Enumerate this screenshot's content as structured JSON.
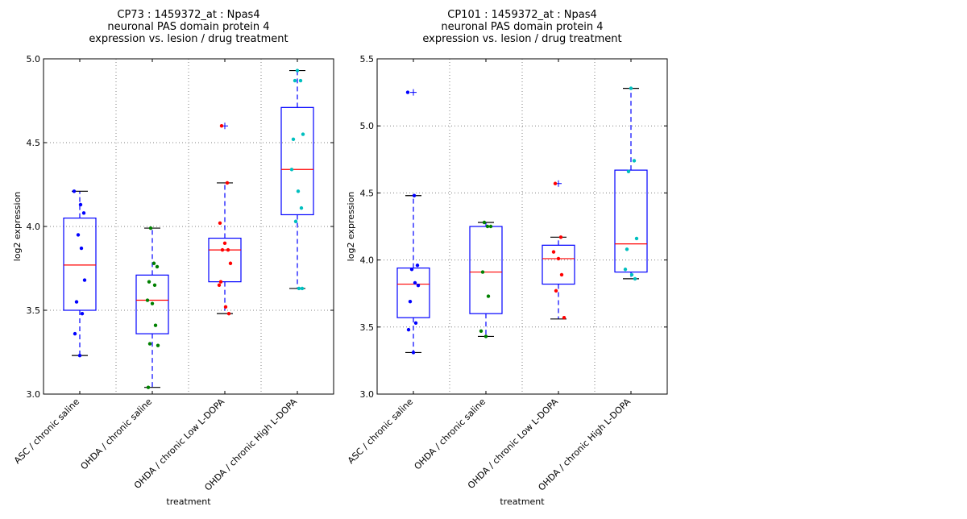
{
  "chart_data": [
    {
      "type": "box",
      "title": [
        "CP73 : 1459372_at : Npas4",
        "neuronal PAS domain protein 4",
        "expression vs. lesion / drug treatment"
      ],
      "xlabel": "treatment",
      "ylabel": "log2 expression",
      "ylim": [
        3.0,
        5.0
      ],
      "yticks": [
        "3.0",
        "3.5",
        "4.0",
        "4.5",
        "5.0"
      ],
      "ytick_values": [
        3.0,
        3.5,
        4.0,
        4.5,
        5.0
      ],
      "grid": true,
      "categories": [
        "ASC / chronic saline",
        "OHDA / chronic saline",
        "OHDA / chronic Low L-DOPA",
        "OHDA / chronic High L-DOPA"
      ],
      "colors": [
        "#0000ff",
        "#008000",
        "#ff0000",
        "#00bfbf"
      ],
      "boxes": [
        {
          "whisker_low": 3.23,
          "q1": 3.5,
          "median": 3.77,
          "q3": 4.05,
          "whisker_high": 4.21,
          "outliers": [],
          "points": [
            4.21,
            4.13,
            4.08,
            3.95,
            3.87,
            3.68,
            3.55,
            3.48,
            3.36,
            3.23
          ]
        },
        {
          "whisker_low": 3.04,
          "q1": 3.36,
          "median": 3.56,
          "q3": 3.71,
          "whisker_high": 3.99,
          "outliers": [],
          "points": [
            3.99,
            3.78,
            3.76,
            3.67,
            3.65,
            3.56,
            3.54,
            3.41,
            3.3,
            3.29,
            3.04
          ]
        },
        {
          "whisker_low": 3.48,
          "q1": 3.67,
          "median": 3.86,
          "q3": 3.93,
          "whisker_high": 4.26,
          "outliers": [
            4.6
          ],
          "points": [
            4.6,
            4.26,
            4.02,
            3.9,
            3.86,
            3.86,
            3.78,
            3.67,
            3.65,
            3.52,
            3.48
          ]
        },
        {
          "whisker_low": 3.63,
          "q1": 4.07,
          "median": 4.34,
          "q3": 4.71,
          "whisker_high": 4.93,
          "outliers": [],
          "points": [
            4.93,
            4.87,
            4.87,
            4.55,
            4.52,
            4.34,
            4.21,
            4.11,
            4.03,
            3.63,
            3.63
          ]
        }
      ]
    },
    {
      "type": "box",
      "title": [
        "CP101 : 1459372_at : Npas4",
        "neuronal PAS domain protein 4",
        "expression vs. lesion / drug treatment"
      ],
      "xlabel": "treatment",
      "ylabel": "log2 expression",
      "ylim": [
        3.0,
        5.5
      ],
      "yticks": [
        "3.0",
        "3.5",
        "4.0",
        "4.5",
        "5.0",
        "5.5"
      ],
      "ytick_values": [
        3.0,
        3.5,
        4.0,
        4.5,
        5.0,
        5.5
      ],
      "grid": true,
      "categories": [
        "ASC / chronic saline",
        "OHDA / chronic saline",
        "OHDA / chronic Low L-DOPA",
        "OHDA / chronic High L-DOPA"
      ],
      "colors": [
        "#0000ff",
        "#008000",
        "#ff0000",
        "#00bfbf"
      ],
      "boxes": [
        {
          "whisker_low": 3.31,
          "q1": 3.57,
          "median": 3.82,
          "q3": 3.94,
          "whisker_high": 4.48,
          "outliers": [
            5.25
          ],
          "points": [
            5.25,
            4.48,
            3.96,
            3.93,
            3.83,
            3.81,
            3.69,
            3.53,
            3.48,
            3.31
          ]
        },
        {
          "whisker_low": 3.43,
          "q1": 3.6,
          "median": 3.91,
          "q3": 4.25,
          "whisker_high": 4.28,
          "outliers": [],
          "points": [
            4.28,
            4.25,
            4.25,
            3.91,
            3.73,
            3.47,
            3.43
          ]
        },
        {
          "whisker_low": 3.56,
          "q1": 3.82,
          "median": 4.01,
          "q3": 4.11,
          "whisker_high": 4.17,
          "outliers": [
            4.57
          ],
          "points": [
            4.57,
            4.17,
            4.06,
            4.01,
            3.89,
            3.77,
            3.57
          ]
        },
        {
          "whisker_low": 3.86,
          "q1": 3.91,
          "median": 4.12,
          "q3": 4.67,
          "whisker_high": 5.28,
          "outliers": [],
          "points": [
            5.28,
            4.74,
            4.66,
            4.16,
            4.08,
            3.93,
            3.89,
            3.86
          ]
        }
      ]
    }
  ]
}
